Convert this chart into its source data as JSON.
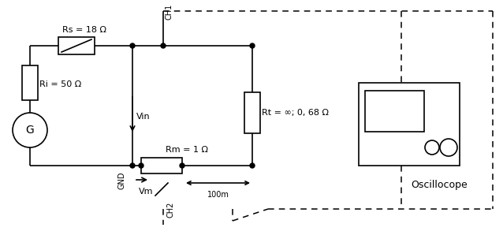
{
  "background": "#ffffff",
  "line_color": "#000000",
  "Rs_label": "Rs = 18 Ω",
  "Ri_label": "Ri = 50 Ω",
  "Rm_label": "Rm = 1 Ω",
  "Rt_label": "Rt = ∞; 0, 68 Ω",
  "Vin_label": "Vin",
  "Vm_label": "Vm",
  "GND_label": "GND",
  "CH1_label": "CH1",
  "CH2_label": "CH2",
  "osc_label": "Oscillocope",
  "arrow_label": "100m",
  "G_label": "G"
}
